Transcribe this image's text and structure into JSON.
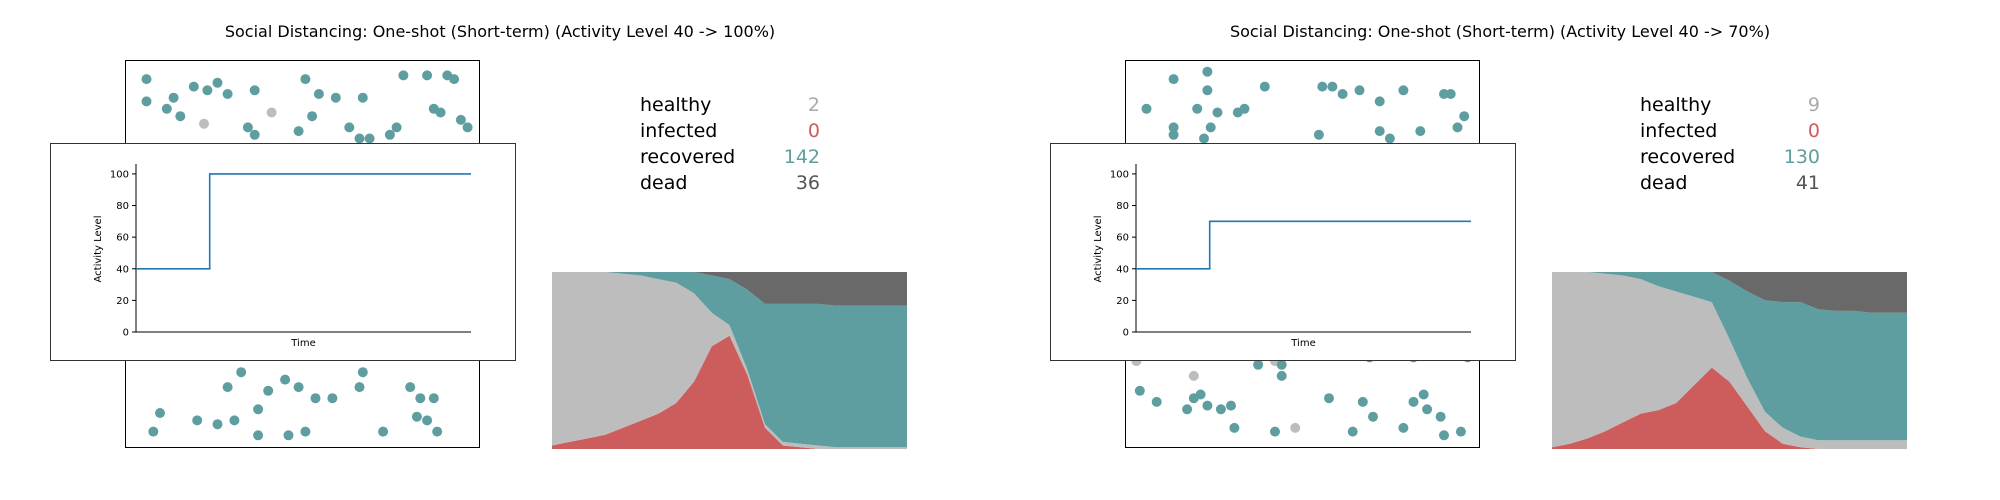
{
  "colors": {
    "healthy": "#bdbdbd",
    "infected": "#cd5c5c",
    "recovered": "#5f9ea0",
    "dead": "#696969",
    "activity_line": "#1f77b4",
    "healthy_value": "#aaaaaa",
    "infected_value": "#cd5c5c",
    "recovered_value": "#5f9ea0",
    "dead_value": "#555555"
  },
  "panels": [
    {
      "title": "Social Distancing: One-shot (Short-term) (Activity Level 40 -> 100%)",
      "stats": [
        {
          "label": "healthy",
          "value": "2",
          "key": "healthy_value"
        },
        {
          "label": "infected",
          "value": "0",
          "key": "infected_value"
        },
        {
          "label": "recovered",
          "value": "142",
          "key": "recovered_value"
        },
        {
          "label": "dead",
          "value": "36",
          "key": "dead_value"
        }
      ],
      "inset": {
        "ylabel": "Activity Level",
        "xlabel": "Time"
      }
    },
    {
      "title": "Social Distancing: One-shot (Short-term) (Activity Level 40 -> 70%)",
      "stats": [
        {
          "label": "healthy",
          "value": "9",
          "key": "healthy_value"
        },
        {
          "label": "infected",
          "value": "0",
          "key": "infected_value"
        },
        {
          "label": "recovered",
          "value": "130",
          "key": "recovered_value"
        },
        {
          "label": "dead",
          "value": "41",
          "key": "dead_value"
        }
      ],
      "inset": {
        "ylabel": "Activity Level",
        "xlabel": "Time"
      }
    }
  ],
  "chart_data": [
    {
      "type": "scatter",
      "panel": 0,
      "points": [
        {
          "x": 0.04,
          "y": 0.97,
          "s": "recovered"
        },
        {
          "x": 0.12,
          "y": 0.92,
          "s": "recovered"
        },
        {
          "x": 0.18,
          "y": 0.95,
          "s": "recovered"
        },
        {
          "x": 0.22,
          "y": 0.94,
          "s": "recovered"
        },
        {
          "x": 0.25,
          "y": 0.96,
          "s": "recovered"
        },
        {
          "x": 0.28,
          "y": 0.93,
          "s": "recovered"
        },
        {
          "x": 0.04,
          "y": 0.91,
          "s": "recovered"
        },
        {
          "x": 0.1,
          "y": 0.89,
          "s": "recovered"
        },
        {
          "x": 0.14,
          "y": 0.87,
          "s": "recovered"
        },
        {
          "x": 0.21,
          "y": 0.85,
          "s": "healthy"
        },
        {
          "x": 0.36,
          "y": 0.94,
          "s": "recovered"
        },
        {
          "x": 0.41,
          "y": 0.88,
          "s": "healthy"
        },
        {
          "x": 0.51,
          "y": 0.97,
          "s": "recovered"
        },
        {
          "x": 0.55,
          "y": 0.93,
          "s": "recovered"
        },
        {
          "x": 0.6,
          "y": 0.92,
          "s": "recovered"
        },
        {
          "x": 0.68,
          "y": 0.92,
          "s": "recovered"
        },
        {
          "x": 0.8,
          "y": 0.98,
          "s": "recovered"
        },
        {
          "x": 0.87,
          "y": 0.98,
          "s": "recovered"
        },
        {
          "x": 0.93,
          "y": 0.98,
          "s": "recovered"
        },
        {
          "x": 0.95,
          "y": 0.97,
          "s": "recovered"
        },
        {
          "x": 0.89,
          "y": 0.89,
          "s": "recovered"
        },
        {
          "x": 0.91,
          "y": 0.88,
          "s": "recovered"
        },
        {
          "x": 0.34,
          "y": 0.84,
          "s": "recovered"
        },
        {
          "x": 0.36,
          "y": 0.82,
          "s": "recovered"
        },
        {
          "x": 0.49,
          "y": 0.83,
          "s": "recovered"
        },
        {
          "x": 0.53,
          "y": 0.87,
          "s": "recovered"
        },
        {
          "x": 0.64,
          "y": 0.84,
          "s": "recovered"
        },
        {
          "x": 0.67,
          "y": 0.81,
          "s": "recovered"
        },
        {
          "x": 0.7,
          "y": 0.81,
          "s": "recovered"
        },
        {
          "x": 0.76,
          "y": 0.82,
          "s": "recovered"
        },
        {
          "x": 0.78,
          "y": 0.84,
          "s": "recovered"
        },
        {
          "x": 0.97,
          "y": 0.86,
          "s": "recovered"
        },
        {
          "x": 0.99,
          "y": 0.84,
          "s": "recovered"
        },
        {
          "x": 0.68,
          "y": 0.18,
          "s": "recovered"
        },
        {
          "x": 0.28,
          "y": 0.14,
          "s": "recovered"
        },
        {
          "x": 0.32,
          "y": 0.18,
          "s": "recovered"
        },
        {
          "x": 0.4,
          "y": 0.13,
          "s": "recovered"
        },
        {
          "x": 0.45,
          "y": 0.16,
          "s": "recovered"
        },
        {
          "x": 0.49,
          "y": 0.14,
          "s": "recovered"
        },
        {
          "x": 0.54,
          "y": 0.11,
          "s": "recovered"
        },
        {
          "x": 0.59,
          "y": 0.11,
          "s": "recovered"
        },
        {
          "x": 0.67,
          "y": 0.14,
          "s": "recovered"
        },
        {
          "x": 0.82,
          "y": 0.14,
          "s": "recovered"
        },
        {
          "x": 0.85,
          "y": 0.11,
          "s": "recovered"
        },
        {
          "x": 0.89,
          "y": 0.11,
          "s": "recovered"
        },
        {
          "x": 0.37,
          "y": 0.08,
          "s": "recovered"
        },
        {
          "x": 0.08,
          "y": 0.07,
          "s": "recovered"
        },
        {
          "x": 0.19,
          "y": 0.05,
          "s": "recovered"
        },
        {
          "x": 0.25,
          "y": 0.04,
          "s": "recovered"
        },
        {
          "x": 0.3,
          "y": 0.05,
          "s": "recovered"
        },
        {
          "x": 0.84,
          "y": 0.06,
          "s": "recovered"
        },
        {
          "x": 0.87,
          "y": 0.05,
          "s": "recovered"
        },
        {
          "x": 0.06,
          "y": 0.02,
          "s": "recovered"
        },
        {
          "x": 0.37,
          "y": 0.01,
          "s": "recovered"
        },
        {
          "x": 0.46,
          "y": 0.01,
          "s": "recovered"
        },
        {
          "x": 0.51,
          "y": 0.02,
          "s": "recovered"
        },
        {
          "x": 0.74,
          "y": 0.02,
          "s": "recovered"
        },
        {
          "x": 0.9,
          "y": 0.02,
          "s": "recovered"
        }
      ]
    },
    {
      "type": "line",
      "panel": 0,
      "ylabel": "Activity Level",
      "xlabel": "Time",
      "ylim": [
        0,
        105
      ],
      "yticks": [
        0,
        20,
        40,
        60,
        80,
        100
      ],
      "x": [
        0,
        0.22,
        0.22,
        1.0
      ],
      "y": [
        40,
        40,
        100,
        100
      ]
    },
    {
      "type": "area",
      "panel": 0,
      "x": [
        0,
        0.05,
        0.1,
        0.15,
        0.2,
        0.25,
        0.3,
        0.35,
        0.4,
        0.45,
        0.5,
        0.55,
        0.6,
        0.65,
        0.7,
        0.75,
        0.8,
        0.85,
        0.9,
        0.95,
        1.0
      ],
      "series": [
        {
          "name": "infected",
          "values": [
            0.02,
            0.04,
            0.06,
            0.08,
            0.12,
            0.16,
            0.2,
            0.26,
            0.38,
            0.58,
            0.64,
            0.42,
            0.12,
            0.02,
            0.01,
            0.0,
            0.0,
            0.0,
            0.0,
            0.0,
            0.0
          ]
        },
        {
          "name": "healthy",
          "values": [
            0.98,
            0.96,
            0.94,
            0.92,
            0.87,
            0.82,
            0.76,
            0.68,
            0.5,
            0.19,
            0.06,
            0.03,
            0.02,
            0.02,
            0.02,
            0.02,
            0.01,
            0.01,
            0.01,
            0.01,
            0.01
          ]
        },
        {
          "name": "recovered",
          "values": [
            0.0,
            0.0,
            0.0,
            0.0,
            0.01,
            0.02,
            0.04,
            0.06,
            0.12,
            0.21,
            0.26,
            0.45,
            0.68,
            0.78,
            0.79,
            0.8,
            0.8,
            0.8,
            0.8,
            0.8,
            0.8
          ]
        },
        {
          "name": "dead",
          "values": [
            0.0,
            0.0,
            0.0,
            0.0,
            0.0,
            0.0,
            0.0,
            0.0,
            0.0,
            0.02,
            0.04,
            0.1,
            0.18,
            0.18,
            0.18,
            0.18,
            0.19,
            0.19,
            0.19,
            0.19,
            0.19
          ]
        }
      ]
    },
    {
      "type": "scatter",
      "panel": 1,
      "points": [
        {
          "x": 0.12,
          "y": 0.97,
          "s": "recovered"
        },
        {
          "x": 0.22,
          "y": 0.99,
          "s": "recovered"
        },
        {
          "x": 0.39,
          "y": 0.95,
          "s": "recovered"
        },
        {
          "x": 0.56,
          "y": 0.95,
          "s": "recovered"
        },
        {
          "x": 0.59,
          "y": 0.95,
          "s": "recovered"
        },
        {
          "x": 0.62,
          "y": 0.93,
          "s": "recovered"
        },
        {
          "x": 0.67,
          "y": 0.94,
          "s": "recovered"
        },
        {
          "x": 0.73,
          "y": 0.91,
          "s": "recovered"
        },
        {
          "x": 0.8,
          "y": 0.94,
          "s": "recovered"
        },
        {
          "x": 0.92,
          "y": 0.93,
          "s": "recovered"
        },
        {
          "x": 0.94,
          "y": 0.93,
          "s": "recovered"
        },
        {
          "x": 0.22,
          "y": 0.94,
          "s": "recovered"
        },
        {
          "x": 0.04,
          "y": 0.89,
          "s": "recovered"
        },
        {
          "x": 0.19,
          "y": 0.89,
          "s": "recovered"
        },
        {
          "x": 0.25,
          "y": 0.88,
          "s": "recovered"
        },
        {
          "x": 0.31,
          "y": 0.88,
          "s": "recovered"
        },
        {
          "x": 0.33,
          "y": 0.89,
          "s": "recovered"
        },
        {
          "x": 0.12,
          "y": 0.84,
          "s": "recovered"
        },
        {
          "x": 0.12,
          "y": 0.82,
          "s": "recovered"
        },
        {
          "x": 0.21,
          "y": 0.81,
          "s": "recovered"
        },
        {
          "x": 0.23,
          "y": 0.84,
          "s": "recovered"
        },
        {
          "x": 0.55,
          "y": 0.82,
          "s": "recovered"
        },
        {
          "x": 0.73,
          "y": 0.83,
          "s": "recovered"
        },
        {
          "x": 0.76,
          "y": 0.81,
          "s": "recovered"
        },
        {
          "x": 0.85,
          "y": 0.83,
          "s": "recovered"
        },
        {
          "x": 0.96,
          "y": 0.84,
          "s": "recovered"
        },
        {
          "x": 0.98,
          "y": 0.87,
          "s": "recovered"
        },
        {
          "x": 0.01,
          "y": 0.21,
          "s": "healthy"
        },
        {
          "x": 0.42,
          "y": 0.21,
          "s": "healthy"
        },
        {
          "x": 0.18,
          "y": 0.17,
          "s": "healthy"
        },
        {
          "x": 0.44,
          "y": 0.2,
          "s": "recovered"
        },
        {
          "x": 0.37,
          "y": 0.2,
          "s": "recovered"
        },
        {
          "x": 0.44,
          "y": 0.17,
          "s": "recovered"
        },
        {
          "x": 0.7,
          "y": 0.22,
          "s": "recovered"
        },
        {
          "x": 0.99,
          "y": 0.22,
          "s": "recovered"
        },
        {
          "x": 0.83,
          "y": 0.22,
          "s": "recovered"
        },
        {
          "x": 0.02,
          "y": 0.13,
          "s": "recovered"
        },
        {
          "x": 0.07,
          "y": 0.1,
          "s": "recovered"
        },
        {
          "x": 0.18,
          "y": 0.11,
          "s": "recovered"
        },
        {
          "x": 0.2,
          "y": 0.12,
          "s": "recovered"
        },
        {
          "x": 0.22,
          "y": 0.09,
          "s": "recovered"
        },
        {
          "x": 0.26,
          "y": 0.08,
          "s": "recovered"
        },
        {
          "x": 0.29,
          "y": 0.09,
          "s": "recovered"
        },
        {
          "x": 0.16,
          "y": 0.08,
          "s": "recovered"
        },
        {
          "x": 0.58,
          "y": 0.11,
          "s": "recovered"
        },
        {
          "x": 0.68,
          "y": 0.1,
          "s": "recovered"
        },
        {
          "x": 0.71,
          "y": 0.06,
          "s": "recovered"
        },
        {
          "x": 0.83,
          "y": 0.1,
          "s": "recovered"
        },
        {
          "x": 0.86,
          "y": 0.12,
          "s": "recovered"
        },
        {
          "x": 0.87,
          "y": 0.08,
          "s": "recovered"
        },
        {
          "x": 0.91,
          "y": 0.06,
          "s": "recovered"
        },
        {
          "x": 0.3,
          "y": 0.03,
          "s": "recovered"
        },
        {
          "x": 0.42,
          "y": 0.02,
          "s": "recovered"
        },
        {
          "x": 0.48,
          "y": 0.03,
          "s": "healthy"
        },
        {
          "x": 0.65,
          "y": 0.02,
          "s": "recovered"
        },
        {
          "x": 0.8,
          "y": 0.03,
          "s": "recovered"
        },
        {
          "x": 0.92,
          "y": 0.01,
          "s": "recovered"
        },
        {
          "x": 0.97,
          "y": 0.02,
          "s": "recovered"
        }
      ]
    },
    {
      "type": "line",
      "panel": 1,
      "ylabel": "Activity Level",
      "xlabel": "Time",
      "ylim": [
        0,
        105
      ],
      "yticks": [
        0,
        20,
        40,
        60,
        80,
        100
      ],
      "x": [
        0,
        0.22,
        0.22,
        1.0
      ],
      "y": [
        40,
        40,
        70,
        70
      ]
    },
    {
      "type": "area",
      "panel": 1,
      "x": [
        0,
        0.05,
        0.1,
        0.15,
        0.2,
        0.25,
        0.3,
        0.35,
        0.4,
        0.45,
        0.5,
        0.55,
        0.6,
        0.65,
        0.7,
        0.75,
        0.8,
        0.85,
        0.9,
        0.95,
        1.0
      ],
      "series": [
        {
          "name": "infected",
          "values": [
            0.01,
            0.03,
            0.06,
            0.1,
            0.15,
            0.2,
            0.22,
            0.26,
            0.36,
            0.46,
            0.38,
            0.24,
            0.1,
            0.03,
            0.01,
            0.0,
            0.0,
            0.0,
            0.0,
            0.0,
            0.0
          ]
        },
        {
          "name": "healthy",
          "values": [
            0.99,
            0.97,
            0.94,
            0.89,
            0.83,
            0.76,
            0.7,
            0.63,
            0.5,
            0.37,
            0.24,
            0.16,
            0.11,
            0.09,
            0.06,
            0.05,
            0.05,
            0.05,
            0.05,
            0.05,
            0.05
          ]
        },
        {
          "name": "recovered",
          "values": [
            0.0,
            0.0,
            0.0,
            0.01,
            0.02,
            0.04,
            0.08,
            0.11,
            0.14,
            0.17,
            0.33,
            0.49,
            0.63,
            0.71,
            0.76,
            0.74,
            0.73,
            0.73,
            0.72,
            0.72,
            0.72
          ]
        },
        {
          "name": "dead",
          "values": [
            0.0,
            0.0,
            0.0,
            0.0,
            0.0,
            0.0,
            0.0,
            0.0,
            0.0,
            0.0,
            0.05,
            0.11,
            0.16,
            0.17,
            0.17,
            0.21,
            0.22,
            0.22,
            0.23,
            0.23,
            0.23
          ]
        }
      ]
    }
  ]
}
